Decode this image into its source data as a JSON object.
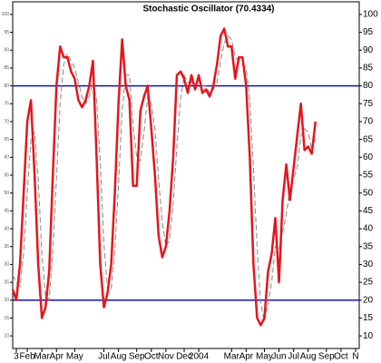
{
  "chart_data": {
    "type": "line",
    "title": "Stochastic Oscillator (70.4334)",
    "x": [
      0,
      1,
      2,
      3,
      4,
      5,
      6,
      7,
      8,
      9,
      10,
      11,
      12,
      13,
      14,
      15,
      16,
      17,
      18,
      19,
      20,
      21,
      22,
      23,
      24,
      25,
      26,
      27,
      28,
      29,
      30,
      31,
      32,
      33,
      34,
      35,
      36,
      37,
      38,
      39,
      40,
      41,
      42,
      43,
      44,
      45,
      46,
      47,
      48,
      49,
      50,
      51,
      52,
      53,
      54,
      55,
      56,
      57,
      58,
      59,
      60,
      61,
      62,
      63,
      64,
      65,
      66,
      67,
      68,
      69,
      70,
      71,
      72,
      73,
      74,
      75,
      76,
      77,
      78,
      79,
      80,
      81,
      82,
      83
    ],
    "series": [
      {
        "color": "#e8141b",
        "style": "solid",
        "values": [
          23,
          20,
          30,
          50,
          70,
          76,
          55,
          30,
          15,
          18,
          28,
          55,
          80,
          91,
          88,
          88,
          84,
          82,
          76,
          74,
          76,
          80,
          87,
          60,
          30,
          18,
          22,
          30,
          50,
          75,
          93,
          80,
          76,
          52,
          52,
          73,
          77,
          80,
          68,
          55,
          38,
          32,
          35,
          45,
          60,
          83,
          84,
          82,
          78,
          83,
          79,
          83,
          78,
          79,
          77,
          80,
          86,
          94,
          96,
          91,
          91,
          82,
          88,
          88,
          80,
          60,
          30,
          15,
          13,
          15,
          28,
          33,
          43,
          25,
          48,
          58,
          48,
          57,
          66,
          75,
          62,
          63,
          61,
          70
        ]
      },
      {
        "color": "#888888",
        "style": "dashed",
        "values": [
          27,
          25,
          24,
          33,
          50,
          65,
          67,
          54,
          33,
          21,
          20,
          34,
          54,
          75,
          86,
          89,
          87,
          85,
          81,
          77,
          75,
          77,
          81,
          76,
          59,
          36,
          23,
          23,
          34,
          52,
          73,
          83,
          83,
          69,
          60,
          59,
          67,
          77,
          75,
          68,
          54,
          42,
          35,
          37,
          47,
          63,
          76,
          83,
          81,
          81,
          80,
          82,
          80,
          80,
          78,
          79,
          81,
          87,
          92,
          94,
          93,
          88,
          87,
          86,
          85,
          76,
          57,
          35,
          19,
          14,
          19,
          25,
          35,
          34,
          39,
          44,
          51,
          54,
          57,
          66,
          68,
          67,
          62,
          65
        ]
      }
    ],
    "hlines": [
      80,
      20
    ],
    "hline_color": "#1010c0",
    "xlim": [
      0,
      95
    ],
    "xticks": [
      {
        "value": 1,
        "label": "3"
      },
      {
        "value": 4,
        "label": "Feb"
      },
      {
        "value": 8,
        "label": "Mar"
      },
      {
        "value": 12,
        "label": "Apr"
      },
      {
        "value": 17,
        "label": "May"
      },
      {
        "value": 25,
        "label": "Jul"
      },
      {
        "value": 29,
        "label": "Aug"
      },
      {
        "value": 34,
        "label": "Sep"
      },
      {
        "value": 38,
        "label": "Oct"
      },
      {
        "value": 42,
        "label": "Nov"
      },
      {
        "value": 47,
        "label": "Dec"
      },
      {
        "value": 51,
        "label": "2004"
      },
      {
        "value": 60,
        "label": "Mar"
      },
      {
        "value": 64,
        "label": "Apr"
      },
      {
        "value": 69,
        "label": "May"
      },
      {
        "value": 73,
        "label": "Jun"
      },
      {
        "value": 77,
        "label": "Jul"
      },
      {
        "value": 81,
        "label": "Aug"
      },
      {
        "value": 86,
        "label": "Sep"
      },
      {
        "value": 90,
        "label": "Oct"
      },
      {
        "value": 94,
        "label": "N"
      }
    ],
    "ylim": [
      8,
      102
    ],
    "yticks": [
      10,
      15,
      20,
      25,
      30,
      35,
      40,
      45,
      50,
      55,
      60,
      65,
      70,
      75,
      80,
      85,
      90,
      95,
      100
    ]
  }
}
